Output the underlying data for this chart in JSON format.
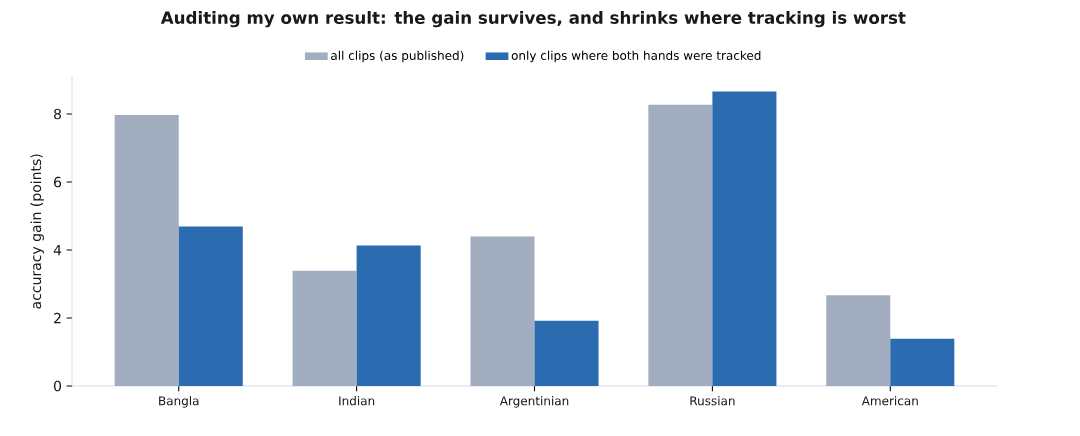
{
  "chart_data": {
    "type": "bar",
    "title": "Auditing my own result: the gain survives, and shrinks where tracking is worst",
    "ylabel": "accuracy gain (points)",
    "categories": [
      "Bangla",
      "Indian",
      "Argentinian",
      "Russian",
      "American"
    ],
    "series": [
      {
        "name": "all clips (as published)",
        "color": "#a2aebf",
        "values": [
          7.97,
          3.39,
          4.4,
          8.28,
          2.67
        ]
      },
      {
        "name": "only clips where both hands were tracked",
        "color": "#2b6cb0",
        "values": [
          4.69,
          4.13,
          1.92,
          8.66,
          1.39
        ]
      }
    ],
    "ylim": [
      0,
      9.1
    ],
    "yticks": [
      0,
      2,
      4,
      6,
      8
    ],
    "legend": "top"
  }
}
